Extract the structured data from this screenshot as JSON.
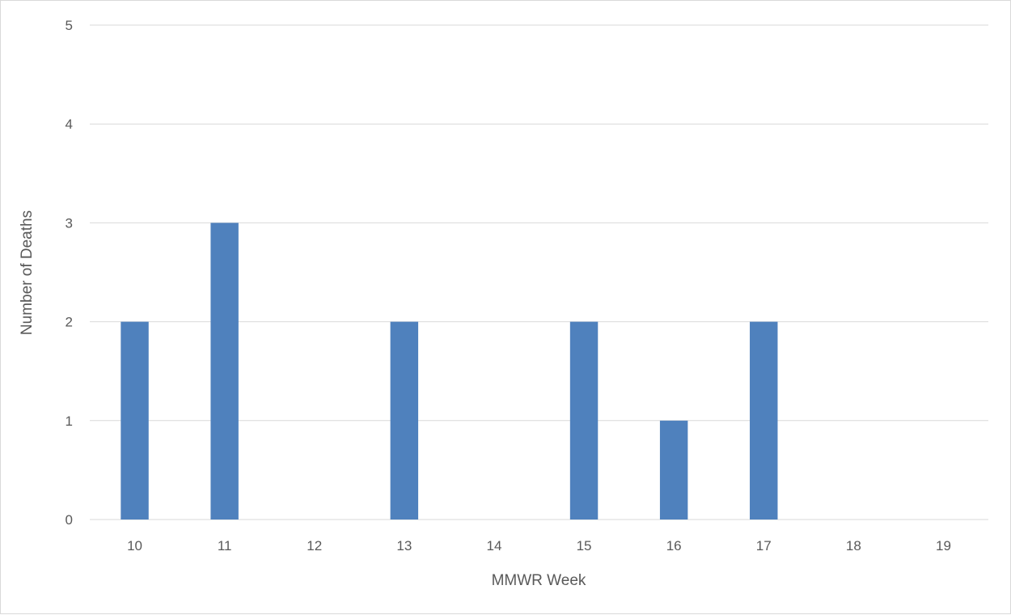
{
  "chart_data": {
    "type": "bar",
    "title": "",
    "xlabel": "MMWR Week",
    "ylabel": "Number of Deaths",
    "categories": [
      "10",
      "11",
      "12",
      "13",
      "14",
      "15",
      "16",
      "17",
      "18",
      "19"
    ],
    "values": [
      2,
      3,
      0,
      2,
      0,
      2,
      1,
      2,
      0,
      0
    ],
    "yticks": [
      "0",
      "1",
      "2",
      "3",
      "4",
      "5"
    ],
    "ylim": [
      0,
      5
    ],
    "grid": true,
    "legend": "none",
    "colors": {
      "bar": "#4f81bd",
      "grid": "#d9d9d9",
      "text": "#595959"
    }
  }
}
